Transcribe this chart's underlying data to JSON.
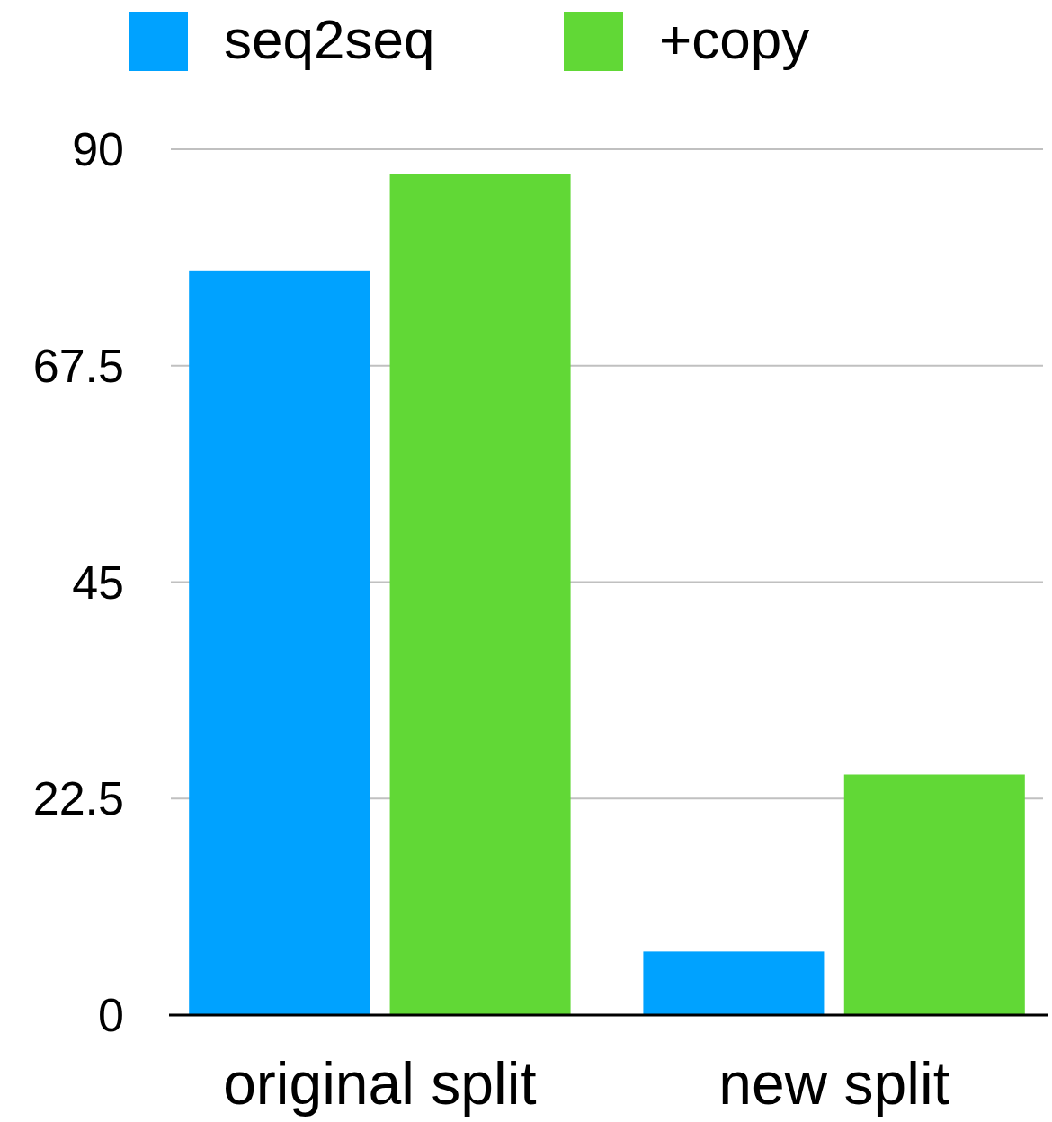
{
  "chart_data": {
    "type": "bar",
    "categories": [
      "original split",
      "new split"
    ],
    "series": [
      {
        "name": "seq2seq",
        "color": "#00a2ff",
        "values": [
          77.4,
          6.6
        ]
      },
      {
        "name": "+copy",
        "color": "#61d836",
        "values": [
          87.4,
          25.0
        ]
      }
    ],
    "ylim": [
      0,
      90
    ],
    "yticks": [
      0,
      22.5,
      45,
      67.5,
      90
    ],
    "grid": "y",
    "legend": "top"
  }
}
